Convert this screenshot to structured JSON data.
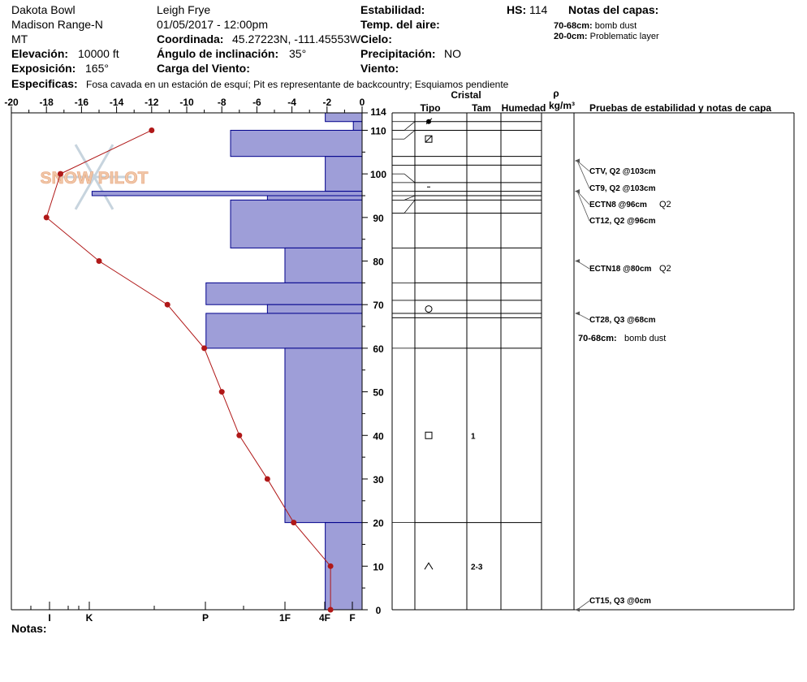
{
  "header": {
    "location": "Dakota Bowl",
    "range": "Madison Range-N",
    "state": "MT",
    "elevation_label": "Elevación:",
    "elevation_value": "10000 ft",
    "aspect_label": "Exposición:",
    "aspect_value": "165°",
    "observer": "Leigh Frye",
    "datetime": "01/05/2017 - 12:00pm",
    "coord_label": "Coordinada:",
    "coord_value": "45.27223N, -111.45553W",
    "incline_label": "Ángulo de inclinación:",
    "incline_value": "35°",
    "wind_load_label": "Carga del Viento:",
    "stability_label": "Estabilidad:",
    "air_temp_label": "Temp. del aire:",
    "sky_label": "Cielo:",
    "precip_label": "Precipitación:",
    "precip_value": "NO",
    "wind_label": "Viento:",
    "hs_label": "HS:",
    "hs_value": "114",
    "layer_notes_title": "Notas del capas:",
    "layer_notes": [
      {
        "range": "70-68cm:",
        "text": "bomb dust"
      },
      {
        "range": "20-0cm:",
        "text": "Problematic layer"
      }
    ],
    "specifics_label": "Especificas:",
    "specifics_text": "Fosa cavada en un estación de esquí; Pit es representante de backcountry; Esquiamos pendiente",
    "notes_label": "Notas:",
    "logo_text": "SNOW PILOT"
  },
  "chart_data": {
    "type": "snow_profile",
    "temperature_axis": {
      "ticks": [
        -20,
        -18,
        -16,
        -14,
        -12,
        -10,
        -8,
        -6,
        -4,
        -2,
        0
      ],
      "tick_labels": [
        "-20",
        "-18",
        "-16",
        "-14",
        "-12",
        "-10",
        "-8",
        "-6",
        "-4",
        "-2",
        "0"
      ],
      "range": [
        -20,
        0
      ]
    },
    "hardness_axis": {
      "labels": [
        "I",
        "K",
        "P",
        "1F",
        "4F",
        "F"
      ]
    },
    "height_axis": {
      "range": [
        0,
        114
      ],
      "ticks": [
        0,
        10,
        20,
        30,
        40,
        50,
        60,
        70,
        80,
        90,
        100,
        110,
        114
      ],
      "tick_labels": [
        "0",
        "10",
        "20",
        "30",
        "40",
        "50",
        "60",
        "70",
        "80",
        "90",
        "100",
        "110",
        "114"
      ]
    },
    "temperature_profile": [
      {
        "h": 0,
        "t": -1.8
      },
      {
        "h": 10,
        "t": -1.8
      },
      {
        "h": 20,
        "t": -3.9
      },
      {
        "h": 30,
        "t": -5.4
      },
      {
        "h": 40,
        "t": -7.0
      },
      {
        "h": 50,
        "t": -8.0
      },
      {
        "h": 60,
        "t": -9.0
      },
      {
        "h": 70,
        "t": -11.1
      },
      {
        "h": 80,
        "t": -15.0
      },
      {
        "h": 90,
        "t": -18.0
      },
      {
        "h": 100,
        "t": -17.2
      },
      {
        "h": 110,
        "t": -12.0
      }
    ],
    "hardness_layers": [
      {
        "top": 114,
        "bottom": 112,
        "t": -2.1
      },
      {
        "top": 112,
        "bottom": 110,
        "t": -0.5
      },
      {
        "top": 110,
        "bottom": 104,
        "t": -7.5
      },
      {
        "top": 104,
        "bottom": 96,
        "t": -2.1
      },
      {
        "top": 96,
        "bottom": 95,
        "t": -15.4
      },
      {
        "top": 95,
        "bottom": 94,
        "t": -5.4
      },
      {
        "top": 94,
        "bottom": 83,
        "t": -7.5
      },
      {
        "top": 83,
        "bottom": 75,
        "t": -4.4
      },
      {
        "top": 75,
        "bottom": 70,
        "t": -8.9
      },
      {
        "top": 70,
        "bottom": 68,
        "t": -5.4
      },
      {
        "top": 68,
        "bottom": 60,
        "t": -8.9
      },
      {
        "top": 60,
        "bottom": 20,
        "t": -4.4
      },
      {
        "top": 20,
        "bottom": 0,
        "t": -2.1
      }
    ],
    "column_headers": {
      "crystal": "Cristal",
      "type": "Tipo",
      "size": "Tam",
      "moisture": "Humedad",
      "rho": "ρ",
      "density_unit": "kg/m³",
      "tests": "Pruebas de estabilidad y notas de capa"
    },
    "layer_boundaries": [
      114,
      112,
      110,
      104,
      102,
      98,
      96,
      95,
      94,
      91,
      83,
      75,
      71,
      68,
      67,
      60,
      20
    ],
    "crystal_rows": [
      {
        "h": 112,
        "symbol": "bullet",
        "size": ""
      },
      {
        "h": 108,
        "symbol": "square-slash",
        "size": ""
      },
      {
        "h": 97,
        "symbol": "dash",
        "size": ""
      },
      {
        "h": 69,
        "symbol": "circle",
        "size": ""
      },
      {
        "h": 40,
        "symbol": "square",
        "size": "1"
      },
      {
        "h": 10,
        "symbol": "caret",
        "size": "2-3"
      }
    ],
    "tests": [
      {
        "h": 103,
        "text": "CTV, Q2 @103cm",
        "suffix": ""
      },
      {
        "h": 103,
        "text": "CT9, Q2 @103cm",
        "suffix": ""
      },
      {
        "h": 96,
        "text": "ECTN8 @96cm",
        "suffix": "Q2"
      },
      {
        "h": 96,
        "text": "CT12, Q2 @96cm",
        "suffix": ""
      },
      {
        "h": 80,
        "text": "ECTN18 @80cm",
        "suffix": "Q2"
      },
      {
        "h": 68,
        "text": "CT28, Q3 @68cm",
        "suffix": ""
      },
      {
        "h": 0,
        "text": "CT15, Q3 @0cm",
        "suffix": ""
      }
    ],
    "layer_note": {
      "range": "70-68cm:",
      "text": "bomb dust"
    },
    "colors": {
      "hardness_fill": "#9e9ed8",
      "hardness_stroke": "#00008b",
      "temperature": "#b01818"
    }
  }
}
